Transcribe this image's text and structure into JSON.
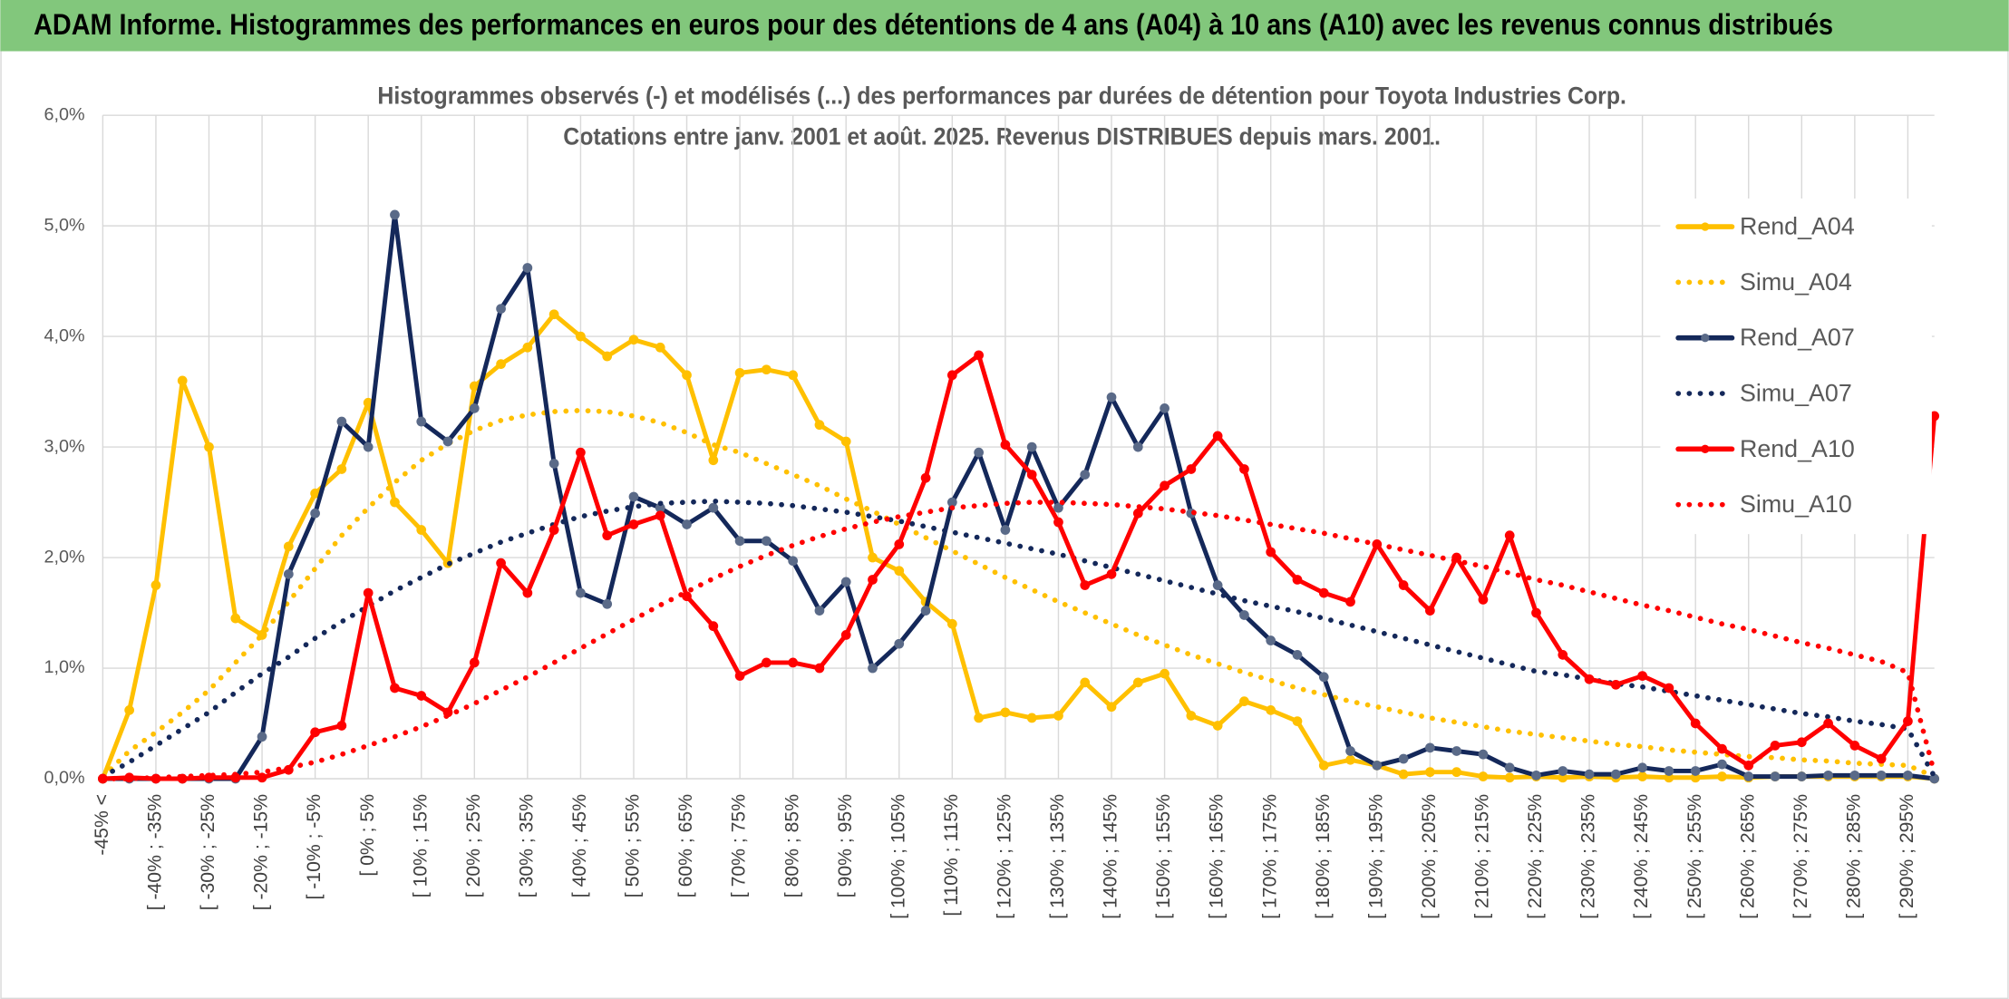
{
  "header": "ADAM Informe. Histogrammes des performances en euros pour des détentions de 4 ans (A04) à 10 ans (A10) avec les revenus connus distribués",
  "chart_data": {
    "type": "line",
    "title": "Histogrammes observés (-) et modélisés (...) des performances par durées de détention pour Toyota Industries Corp.",
    "subtitle": "Cotations entre janv. 2001 et août. 2025. Revenus DISTRIBUES depuis mars. 2001.",
    "categories": [
      "-45% <",
      null,
      "[ -40% ; -35%",
      null,
      "[ -30% ; -25%",
      null,
      "[ -20% ; -15%",
      null,
      "[ -10% ; -5%",
      null,
      "[ 0% ; 5%",
      null,
      "[ 10% ; 15%",
      null,
      "[ 20% ; 25%",
      null,
      "[ 30% ; 35%",
      null,
      "[ 40% ; 45%",
      null,
      "[ 50% ; 55%",
      null,
      "[ 60% ; 65%",
      null,
      "[ 70% ; 75%",
      null,
      "[ 80% ; 85%",
      null,
      "[ 90% ; 95%",
      null,
      "[ 100% ; 105%",
      null,
      "[ 110% ; 115%",
      null,
      "[ 120% ; 125%",
      null,
      "[ 130% ; 135%",
      null,
      "[ 140% ; 145%",
      null,
      "[ 150% ; 155%",
      null,
      "[ 160% ; 165%",
      null,
      "[ 170% ; 175%",
      null,
      "[ 180% ; 185%",
      null,
      "[ 190% ; 195%",
      null,
      "[ 200% ; 205%",
      null,
      "[ 210% ; 215%",
      null,
      "[ 220% ; 225%",
      null,
      "[ 230% ; 235%",
      null,
      "[ 240% ; 245%",
      null,
      "[ 250% ; 255%",
      null,
      "[ 260% ; 265%",
      null,
      "[ 270% ; 275%",
      null,
      "[ 280% ; 285%",
      null,
      "[ 290% ; 295%",
      null
    ],
    "series": [
      {
        "name": "Rend_A04",
        "color": "#ffc000",
        "style": "solid",
        "values": [
          0,
          0.62,
          1.75,
          3.6,
          3.0,
          1.45,
          1.3,
          2.1,
          2.58,
          2.8,
          3.4,
          2.5,
          2.25,
          1.95,
          3.55,
          3.75,
          3.9,
          4.2,
          4.0,
          3.82,
          3.97,
          3.9,
          3.65,
          2.88,
          3.67,
          3.7,
          3.65,
          3.2,
          3.05,
          2.0,
          1.88,
          1.6,
          1.4,
          0.55,
          0.6,
          0.55,
          0.57,
          0.87,
          0.65,
          0.87,
          0.95,
          0.57,
          0.48,
          0.7,
          0.62,
          0.52,
          0.12,
          0.17,
          0.12,
          0.04,
          0.06,
          0.06,
          0.02,
          0.01,
          0.02,
          0.01,
          0.02,
          0.01,
          0.02,
          0.01,
          0.01,
          0.02,
          0.01,
          0.02,
          0.02,
          0.02,
          0.02,
          0.02,
          0.02,
          0.0
        ]
      },
      {
        "name": "Simu_A04",
        "color": "#ffc000",
        "style": "dotted",
        "values": [
          0.02,
          0.25,
          0.42,
          0.6,
          0.8,
          1.05,
          1.3,
          1.6,
          1.9,
          2.2,
          2.45,
          2.68,
          2.88,
          3.03,
          3.15,
          3.24,
          3.29,
          3.32,
          3.33,
          3.32,
          3.28,
          3.22,
          3.13,
          3.02,
          2.95,
          2.85,
          2.75,
          2.65,
          2.53,
          2.42,
          2.3,
          2.18,
          2.06,
          1.94,
          1.82,
          1.71,
          1.6,
          1.5,
          1.4,
          1.3,
          1.21,
          1.12,
          1.04,
          0.96,
          0.89,
          0.82,
          0.76,
          0.7,
          0.65,
          0.6,
          0.55,
          0.51,
          0.47,
          0.43,
          0.4,
          0.37,
          0.34,
          0.31,
          0.29,
          0.26,
          0.24,
          0.22,
          0.2,
          0.19,
          0.17,
          0.16,
          0.14,
          0.13,
          0.12,
          0.02
        ]
      },
      {
        "name": "Rend_A07",
        "color": "#14285a",
        "marker_color": "#5a6a88",
        "style": "solid",
        "values": [
          0,
          0,
          0,
          0,
          0,
          0,
          0.38,
          1.85,
          2.4,
          3.23,
          3.0,
          5.1,
          3.23,
          3.05,
          3.35,
          4.25,
          4.62,
          2.85,
          1.68,
          1.58,
          2.55,
          2.45,
          2.3,
          2.45,
          2.15,
          2.15,
          1.97,
          1.52,
          1.78,
          1.0,
          1.22,
          1.52,
          2.5,
          2.95,
          2.25,
          3.0,
          2.45,
          2.75,
          3.45,
          3.0,
          3.35,
          2.4,
          1.75,
          1.48,
          1.25,
          1.12,
          0.92,
          0.25,
          0.12,
          0.18,
          0.28,
          0.25,
          0.22,
          0.1,
          0.03,
          0.07,
          0.04,
          0.04,
          0.1,
          0.07,
          0.07,
          0.13,
          0.02,
          0.02,
          0.02,
          0.03,
          0.03,
          0.03,
          0.03,
          0.0
        ]
      },
      {
        "name": "Simu_A07",
        "color": "#14285a",
        "style": "dotted",
        "values": [
          0.02,
          0.15,
          0.3,
          0.45,
          0.6,
          0.78,
          0.95,
          1.1,
          1.27,
          1.42,
          1.56,
          1.7,
          1.82,
          1.94,
          2.04,
          2.14,
          2.22,
          2.3,
          2.37,
          2.42,
          2.46,
          2.49,
          2.5,
          2.51,
          2.5,
          2.49,
          2.47,
          2.44,
          2.41,
          2.37,
          2.33,
          2.28,
          2.23,
          2.18,
          2.13,
          2.08,
          2.03,
          1.97,
          1.91,
          1.85,
          1.79,
          1.73,
          1.67,
          1.61,
          1.56,
          1.51,
          1.45,
          1.39,
          1.33,
          1.27,
          1.21,
          1.15,
          1.09,
          1.03,
          0.97,
          0.94,
          0.9,
          0.86,
          0.83,
          0.79,
          0.75,
          0.71,
          0.67,
          0.63,
          0.59,
          0.56,
          0.52,
          0.49,
          0.45,
          0.02
        ]
      },
      {
        "name": "Rend_A10",
        "color": "#ff0000",
        "style": "solid",
        "values": [
          0,
          0.01,
          0,
          0,
          0.01,
          0.01,
          0.01,
          0.08,
          0.42,
          0.48,
          1.68,
          0.82,
          0.75,
          0.6,
          1.05,
          1.95,
          1.68,
          2.25,
          2.95,
          2.2,
          2.3,
          2.38,
          1.65,
          1.38,
          0.93,
          1.05,
          1.05,
          1.0,
          1.3,
          1.8,
          2.12,
          2.72,
          3.65,
          3.83,
          3.02,
          2.75,
          2.32,
          1.75,
          1.85,
          2.4,
          2.65,
          2.8,
          3.1,
          2.8,
          2.05,
          1.8,
          1.68,
          1.6,
          2.12,
          1.75,
          1.52,
          2.0,
          1.62,
          2.2,
          1.5,
          1.12,
          0.9,
          0.85,
          0.93,
          0.82,
          0.5,
          0.27,
          0.12,
          0.3,
          0.33,
          0.5,
          0.3,
          0.18,
          0.52,
          3.28
        ]
      },
      {
        "name": "Simu_A10",
        "color": "#ff0000",
        "style": "dotted",
        "values": [
          0,
          0.0,
          0.01,
          0.02,
          0.03,
          0.04,
          0.06,
          0.1,
          0.15,
          0.22,
          0.3,
          0.38,
          0.47,
          0.57,
          0.68,
          0.8,
          0.92,
          1.05,
          1.18,
          1.31,
          1.44,
          1.57,
          1.69,
          1.81,
          1.92,
          2.02,
          2.11,
          2.19,
          2.26,
          2.32,
          2.37,
          2.41,
          2.45,
          2.47,
          2.49,
          2.5,
          2.5,
          2.49,
          2.48,
          2.46,
          2.44,
          2.41,
          2.38,
          2.34,
          2.3,
          2.26,
          2.22,
          2.17,
          2.12,
          2.07,
          2.02,
          1.97,
          1.92,
          1.86,
          1.8,
          1.75,
          1.69,
          1.63,
          1.57,
          1.52,
          1.46,
          1.4,
          1.35,
          1.29,
          1.23,
          1.18,
          1.12,
          1.06,
          0.96,
          0.05
        ]
      }
    ],
    "ylim": [
      0,
      6
    ],
    "yticks": [
      {
        "value": 0,
        "label": "0,0%"
      },
      {
        "value": 1,
        "label": "1,0%"
      },
      {
        "value": 2,
        "label": "2,0%"
      },
      {
        "value": 3,
        "label": "3,0%"
      },
      {
        "value": 4,
        "label": "4,0%"
      },
      {
        "value": 5,
        "label": "5,0%"
      },
      {
        "value": 6,
        "label": "6,0%"
      }
    ],
    "grid": true,
    "legend": "right"
  }
}
